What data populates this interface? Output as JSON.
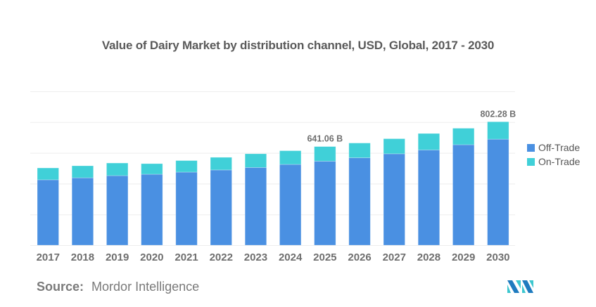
{
  "header": {
    "title": "Value of Dairy Market by distribution channel, USD, Global, 2017 - 2030"
  },
  "legend": {
    "items": [
      {
        "label": "Off-Trade",
        "color": "#4A90E2"
      },
      {
        "label": "On-Trade",
        "color": "#40D0D8"
      }
    ]
  },
  "footer": {
    "source_label": "Source:",
    "source_name": "Mordor Intelligence",
    "logo": "mordor-intelligence-logo"
  },
  "chart_data": {
    "type": "bar",
    "stacked": true,
    "title": "Value of Dairy Market by distribution channel, USD, Global, 2017 - 2030",
    "xlabel": "",
    "ylabel": "",
    "unit": "USD Billion",
    "ylim": [
      0,
      1000
    ],
    "grid": true,
    "y_axis_labels_visible": false,
    "legend_position": "right",
    "categories": [
      "2017",
      "2018",
      "2019",
      "2020",
      "2021",
      "2022",
      "2023",
      "2024",
      "2025",
      "2026",
      "2027",
      "2028",
      "2029",
      "2030"
    ],
    "series": [
      {
        "name": "Off-Trade",
        "color": "#4A90E2",
        "values": [
          425,
          438,
          452,
          461,
          475,
          489,
          505,
          525,
          546,
          568,
          594,
          619,
          653,
          689
        ]
      },
      {
        "name": "On-Trade",
        "color": "#40D0D8",
        "values": [
          77,
          78,
          82,
          69,
          75,
          82,
          89,
          89,
          95.06,
          96,
          98,
          107,
          107,
          113.28
        ]
      }
    ],
    "annotations": [
      {
        "category": "2025",
        "text": "641.06 B"
      },
      {
        "category": "2030",
        "text": "802.28 B"
      }
    ]
  }
}
